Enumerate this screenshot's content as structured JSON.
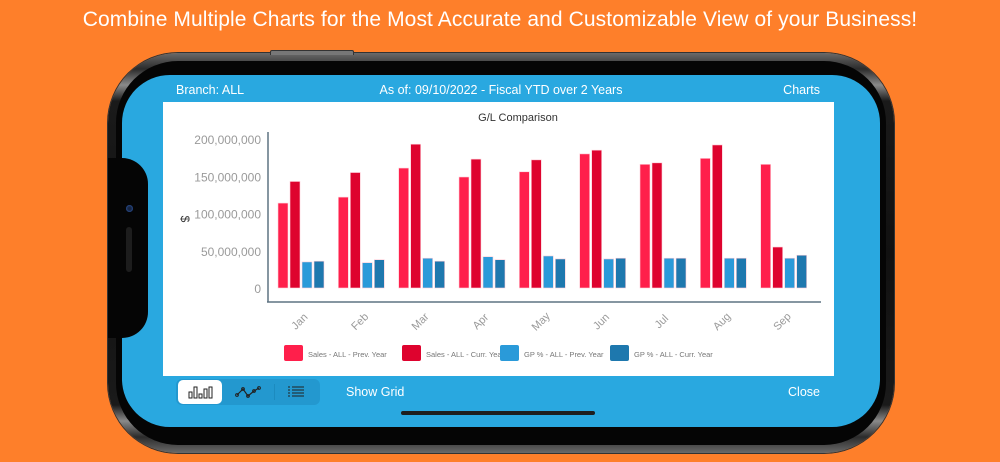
{
  "headline": "Combine Multiple Charts for the Most Accurate and Customizable View of your Business!",
  "topbar": {
    "branch": "Branch: ALL",
    "as_of": "As of: 09/10/2022 - Fiscal YTD over 2 Years",
    "charts_link": "Charts"
  },
  "bottombar": {
    "view_buttons": [
      {
        "icon": "bar-chart-icon",
        "active": true
      },
      {
        "icon": "line-chart-icon",
        "active": false
      },
      {
        "icon": "list-icon",
        "active": false
      }
    ],
    "show_grid": "Show Grid",
    "close": "Close"
  },
  "colors": {
    "background": "#FE7F2A",
    "screen": "#29A8E0",
    "axis": "#5F7382"
  },
  "chart_data": {
    "type": "bar",
    "title": "G/L Comparison",
    "xlabel": "",
    "ylabel": "$",
    "ylim": [
      0,
      200000000
    ],
    "yticks": [
      0,
      50000000,
      100000000,
      150000000,
      200000000
    ],
    "ytick_labels": [
      "0",
      "50,000,000",
      "100,000,000",
      "150,000,000",
      "200,000,000"
    ],
    "categories": [
      "Jan",
      "Feb",
      "Mar",
      "Apr",
      "May",
      "Jun",
      "Jul",
      "Aug",
      "Sep"
    ],
    "grid": false,
    "legend_position": "bottom",
    "series": [
      {
        "name": "Sales - ALL - Prev. Year",
        "color": "#FF1F4B",
        "values": [
          114000000,
          122000000,
          161000000,
          149000000,
          156000000,
          180000000,
          166000000,
          174000000,
          166000000
        ]
      },
      {
        "name": "Sales - ALL - Curr. Year",
        "color": "#DE032E",
        "values": [
          143000000,
          155000000,
          193000000,
          173000000,
          172000000,
          185000000,
          168000000,
          192000000,
          55000000
        ]
      },
      {
        "name": "GP % - ALL - Prev. Year",
        "color": "#2A9AD9",
        "values": [
          35000000,
          34000000,
          40000000,
          42000000,
          43000000,
          39000000,
          40000000,
          40000000,
          40000000
        ]
      },
      {
        "name": "GP % - ALL - Curr. Year",
        "color": "#1E78AE",
        "values": [
          36000000,
          38000000,
          36000000,
          38000000,
          39000000,
          40000000,
          40000000,
          40000000,
          44000000
        ]
      }
    ]
  }
}
